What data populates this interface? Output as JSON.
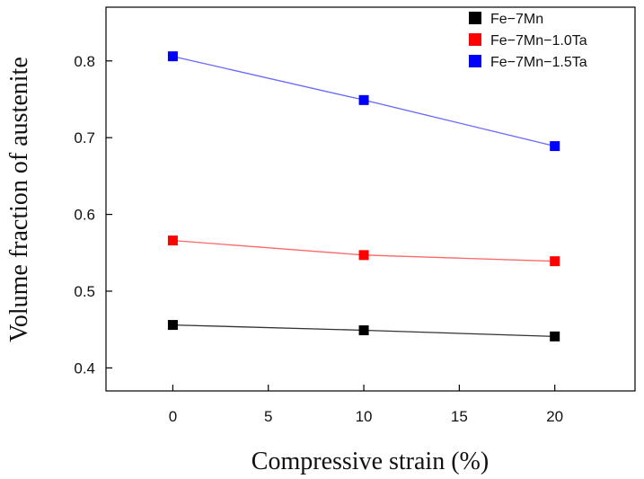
{
  "chart_data": {
    "type": "line",
    "xlabel": "Compressive strain (%)",
    "ylabel": "Volume fraction of austenite",
    "xlim": [
      -3.5,
      24.2
    ],
    "ylim": [
      0.37,
      0.87
    ],
    "xticks": [
      0,
      5,
      10,
      15,
      20
    ],
    "xtick_labels": [
      "0",
      "5",
      "10",
      "15",
      "20"
    ],
    "yticks": [
      0.4,
      0.5,
      0.6,
      0.7,
      0.8
    ],
    "ytick_labels": [
      "0.4",
      "0.5",
      "0.6",
      "0.7",
      "0.8"
    ],
    "x": [
      0,
      10,
      20
    ],
    "series": [
      {
        "name": "Fe−7Mn",
        "color": "#000000",
        "line_color": "#333333",
        "values": [
          0.456,
          0.449,
          0.441
        ]
      },
      {
        "name": "Fe−7Mn−1.0Ta",
        "color": "#ff0000",
        "line_color": "#ff6666",
        "values": [
          0.566,
          0.547,
          0.539
        ]
      },
      {
        "name": "Fe−7Mn−1.5Ta",
        "color": "#0000ff",
        "line_color": "#6666ff",
        "values": [
          0.806,
          0.749,
          0.689
        ]
      }
    ],
    "legend_position": "top-right",
    "marker": "square",
    "grid": false
  }
}
